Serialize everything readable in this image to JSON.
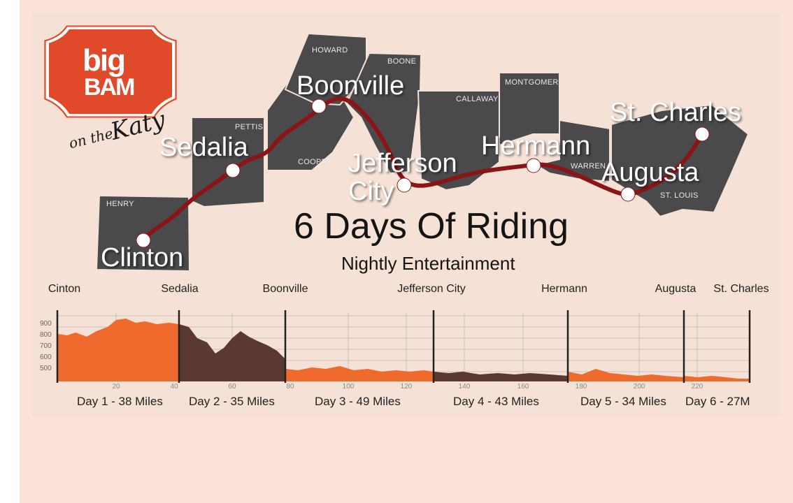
{
  "logo": {
    "line1": "big",
    "line2": "BAM",
    "tag_small": "on the",
    "tag_large": "Katy",
    "color": "#e0492a"
  },
  "map": {
    "county_color": "#4a4a4c",
    "route_color": "#8a1416",
    "counties": [
      "HOWARD",
      "BOONE",
      "PETTIS",
      "COOPER",
      "CALLAWAY",
      "MONTGOMERY",
      "WARREN",
      "ST. LOUIS",
      "HENRY"
    ],
    "cities": [
      "Boonville",
      "Sedalia",
      "Jefferson City",
      "Hermann",
      "St. Charles",
      "Augusta",
      "Clinton"
    ]
  },
  "headline": {
    "title": "6 Days Of Riding",
    "subtitle": "Nightly Entertainment"
  },
  "elevation": {
    "stops": [
      "Cinton",
      "Sedalia",
      "Boonville",
      "Jefferson City",
      "Hermann",
      "Augusta",
      "St. Charles"
    ],
    "y_ticks": [
      900,
      800,
      700,
      600,
      500
    ],
    "x_ticks": [
      20,
      40,
      60,
      80,
      100,
      120,
      140,
      160,
      180,
      200,
      220
    ],
    "days": [
      "Day 1 - 38 Miles",
      "Day 2  - 35 Miles",
      "Day 3  - 49 Miles",
      "Day 4  - 43 Miles",
      "Day 5  - 34 Miles",
      "Day 6 - 27M"
    ],
    "colors": {
      "orange": "#ef6a2c",
      "brown": "#5a3a30"
    }
  }
}
